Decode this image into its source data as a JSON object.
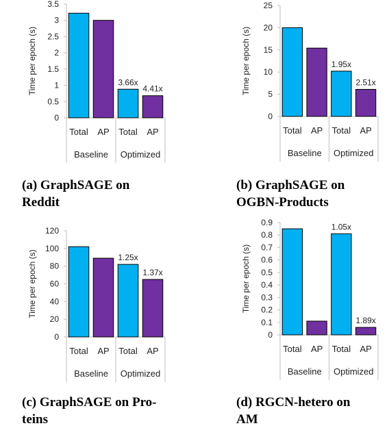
{
  "colors": {
    "total": "#00B0F0",
    "ap": "#7030A0",
    "axis": "#bfbfbf",
    "edge": "#000000"
  },
  "chart_data": [
    {
      "type": "bar",
      "categories": [
        "Total",
        "AP",
        "Total",
        "AP"
      ],
      "groups": [
        "Baseline",
        "Optimized"
      ],
      "values": [
        3.22,
        3.0,
        0.88,
        0.68
      ],
      "labels": [
        "",
        "",
        "3.66x",
        "4.41x"
      ],
      "ylabel": "Time per epoch (s)",
      "ylim": [
        0,
        3.5
      ],
      "yticks": [
        "0",
        "0.5",
        "1",
        "1.5",
        "2",
        "2.5",
        "3",
        "3.5"
      ],
      "caption": [
        "(a)  GraphSAGE  on",
        "Reddit"
      ]
    },
    {
      "type": "bar",
      "categories": [
        "Total",
        "AP",
        "Total",
        "AP"
      ],
      "groups": [
        "Baseline",
        "Optimized"
      ],
      "values": [
        20.0,
        15.4,
        10.2,
        6.1
      ],
      "labels": [
        "",
        "",
        "1.95x",
        "2.51x"
      ],
      "ylabel": "Time per epoch (s)",
      "ylim": [
        0,
        25
      ],
      "yticks": [
        "0",
        "5",
        "10",
        "15",
        "20",
        "25"
      ],
      "caption": [
        "(b)  GraphSAGE  on",
        "OGBN-Products"
      ]
    },
    {
      "type": "bar",
      "categories": [
        "Total",
        "AP",
        "Total",
        "AP"
      ],
      "groups": [
        "Baseline",
        "Optimized"
      ],
      "values": [
        102,
        89,
        82,
        65
      ],
      "labels": [
        "",
        "",
        "1.25x",
        "1.37x"
      ],
      "ylabel": "Time per epoch (s)",
      "ylim": [
        0,
        120
      ],
      "yticks": [
        "0",
        "20",
        "40",
        "60",
        "80",
        "100",
        "120"
      ],
      "caption": [
        "(c) GraphSAGE on Pro-",
        "teins"
      ]
    },
    {
      "type": "bar",
      "categories": [
        "Total",
        "AP",
        "Total",
        "AP"
      ],
      "groups": [
        "Baseline",
        "Optimized"
      ],
      "values": [
        0.85,
        0.11,
        0.81,
        0.06
      ],
      "labels": [
        "",
        "",
        "1.05x",
        "1.89x"
      ],
      "ylabel": "Time per epoch (s)",
      "ylim": [
        0,
        0.9
      ],
      "yticks": [
        "0",
        "0.1",
        "0.2",
        "0.3",
        "0.4",
        "0.5",
        "0.6",
        "0.7",
        "0.8",
        "0.9"
      ],
      "caption": [
        "(d)  RGCN-hetero  on",
        "AM"
      ]
    }
  ]
}
